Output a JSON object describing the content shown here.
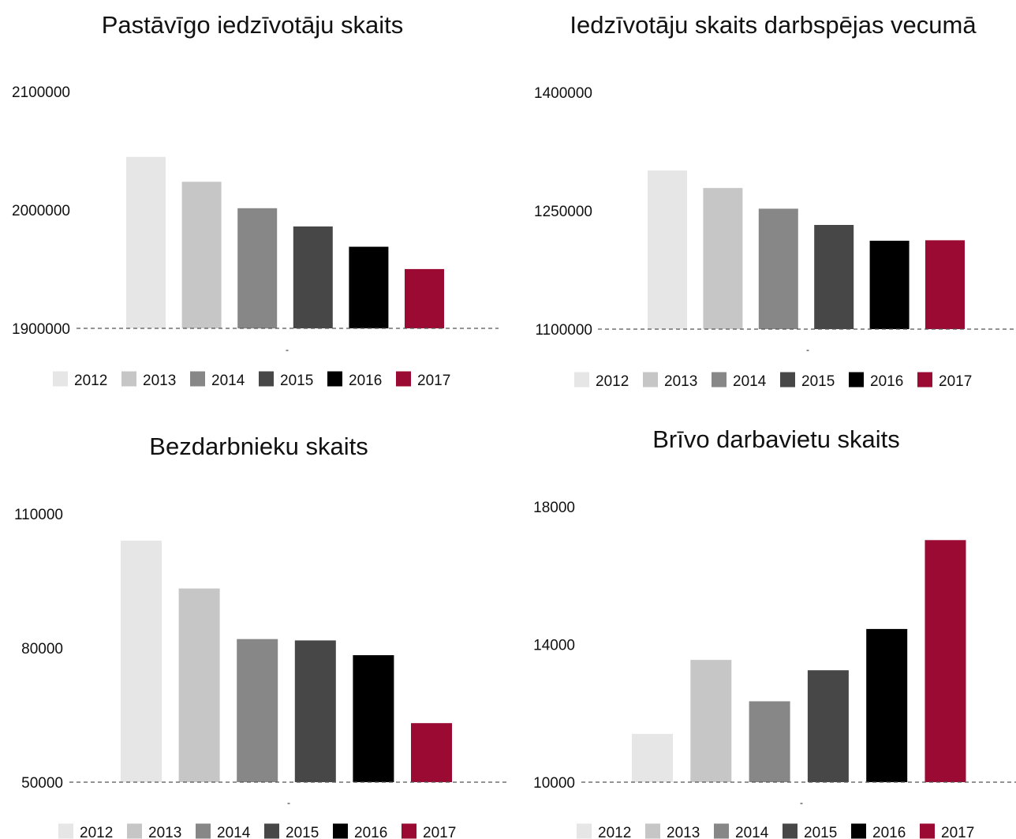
{
  "colors": {
    "2012": "#e6e6e6",
    "2013": "#c6c6c6",
    "2014": "#878787",
    "2015": "#474747",
    "2016": "#000000",
    "2017": "#9b0a33"
  },
  "chart_data": [
    {
      "type": "bar",
      "title": "Pastāvīgo iedzīvotāju skaits",
      "xlabel": "",
      "ylabel": "",
      "categories": [
        ""
      ],
      "legend": [
        "2012",
        "2013",
        "2014",
        "2015",
        "2016",
        "2017"
      ],
      "series": [
        {
          "name": "2012",
          "values": [
            2044800
          ]
        },
        {
          "name": "2013",
          "values": [
            2023800
          ]
        },
        {
          "name": "2014",
          "values": [
            2001500
          ]
        },
        {
          "name": "2015",
          "values": [
            1986100
          ]
        },
        {
          "name": "2016",
          "values": [
            1968900
          ]
        },
        {
          "name": "2017",
          "values": [
            1950100
          ]
        }
      ],
      "ylim": [
        1900000,
        2100000
      ],
      "yticks": [
        "1900000",
        "2000000",
        "2100000"
      ],
      "grid": "baseline only",
      "legend_position": "bottom"
    },
    {
      "type": "bar",
      "title": "Iedzīvotāju skaits darbspējas vecumā",
      "xlabel": "",
      "ylabel": "",
      "categories": [
        ""
      ],
      "legend": [
        "2012",
        "2013",
        "2014",
        "2015",
        "2016",
        "2017"
      ],
      "series": [
        {
          "name": "2012",
          "values": [
            1301000
          ]
        },
        {
          "name": "2013",
          "values": [
            1278800
          ]
        },
        {
          "name": "2014",
          "values": [
            1252600
          ]
        },
        {
          "name": "2015",
          "values": [
            1232000
          ]
        },
        {
          "name": "2016",
          "values": [
            1212000
          ]
        },
        {
          "name": "2017",
          "values": [
            1212600
          ]
        }
      ],
      "ylim": [
        1100000,
        1400000
      ],
      "yticks": [
        "1100000",
        "1250000",
        "1400000"
      ],
      "grid": "baseline only",
      "legend_position": "bottom"
    },
    {
      "type": "bar",
      "title": "Bezdarbnieku skaits",
      "xlabel": "",
      "ylabel": "",
      "categories": [
        ""
      ],
      "legend": [
        "2012",
        "2013",
        "2014",
        "2015",
        "2016",
        "2017"
      ],
      "series": [
        {
          "name": "2012",
          "values": [
            104000
          ]
        },
        {
          "name": "2013",
          "values": [
            93300
          ]
        },
        {
          "name": "2014",
          "values": [
            82000
          ]
        },
        {
          "name": "2015",
          "values": [
            81700
          ]
        },
        {
          "name": "2016",
          "values": [
            78400
          ]
        },
        {
          "name": "2017",
          "values": [
            63200
          ]
        }
      ],
      "ylim": [
        50000,
        110000
      ],
      "yticks": [
        "50000",
        "80000",
        "110000"
      ],
      "grid": "baseline only",
      "legend_position": "bottom"
    },
    {
      "type": "bar",
      "title": "Brīvo darbavietu skaits",
      "xlabel": "",
      "ylabel": "",
      "categories": [
        ""
      ],
      "legend": [
        "2012",
        "2013",
        "2014",
        "2015",
        "2016",
        "2017"
      ],
      "series": [
        {
          "name": "2012",
          "values": [
            11400
          ]
        },
        {
          "name": "2013",
          "values": [
            13550
          ]
        },
        {
          "name": "2014",
          "values": [
            12350
          ]
        },
        {
          "name": "2015",
          "values": [
            13250
          ]
        },
        {
          "name": "2016",
          "values": [
            14450
          ]
        },
        {
          "name": "2017",
          "values": [
            17030
          ]
        }
      ],
      "ylim": [
        10000,
        18000
      ],
      "yticks": [
        "10000",
        "14000",
        "18000"
      ],
      "grid": "baseline only",
      "legend_position": "bottom"
    }
  ]
}
